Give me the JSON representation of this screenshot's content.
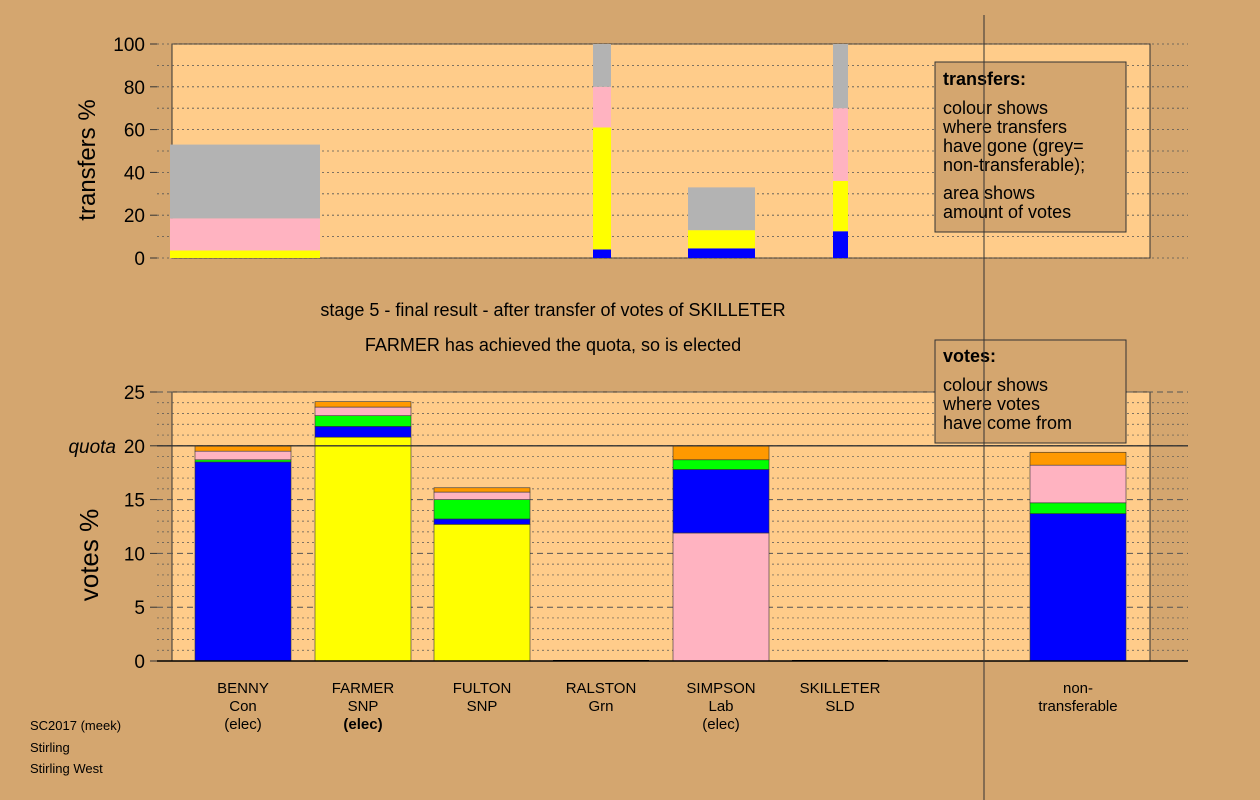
{
  "stage_title": "stage 5 - final result - after transfer of votes of SKILLETER",
  "stage_subtitle": "FARMER has achieved the quota, so is elected",
  "footer": [
    "SC2017 (meek)",
    "Stirling",
    "Stirling West"
  ],
  "colors": {
    "background": "#d4a66f",
    "plot_bg": "#ffcc8a",
    "Con": "#0000ff",
    "SNP": "#ffff00",
    "Grn": "#00ff00",
    "Lab": "#ffb3c1",
    "SLD": "#ff9900",
    "nontransferable": "#b3b3b3"
  },
  "chart_data": [
    {
      "type": "bar",
      "stacked": true,
      "ylabel": "transfers %",
      "ylim": [
        0,
        100
      ],
      "yticks": [
        0,
        20,
        40,
        60,
        80,
        100
      ],
      "grid": true,
      "legend": {
        "title": "transfers:",
        "lines1": [
          "colour shows",
          "where transfers",
          "have gone (grey=",
          "non-transferable);"
        ],
        "lines2": [
          "area shows",
          "amount of votes"
        ]
      },
      "bars": [
        {
          "from": "SIMPSON",
          "segments": [
            {
              "to": "FARMER",
              "color": "SNP",
              "value": 3.5
            },
            {
              "to": "SIMPSON",
              "color": "Lab",
              "value": 15
            },
            {
              "to": "non-transferable",
              "color": "nontransferable",
              "value": 34.5
            }
          ]
        },
        {
          "from": "RALSTON",
          "segments": [
            {
              "to": "BENNY",
              "color": "Con",
              "value": 4
            },
            {
              "to": "FARMER",
              "color": "SNP",
              "value": 57
            },
            {
              "to": "SIMPSON",
              "color": "Lab",
              "value": 19
            },
            {
              "to": "non-transferable",
              "color": "nontransferable",
              "value": 20
            }
          ]
        },
        {
          "from": "FULTON",
          "segments": [
            {
              "to": "BENNY",
              "color": "Con",
              "value": 4.5
            },
            {
              "to": "FARMER",
              "color": "SNP",
              "value": 8.5
            },
            {
              "to": "non-transferable",
              "color": "nontransferable",
              "value": 20
            }
          ]
        },
        {
          "from": "SKILLETER",
          "segments": [
            {
              "to": "BENNY",
              "color": "Con",
              "value": 12.5
            },
            {
              "to": "FARMER",
              "color": "SNP",
              "value": 23.5
            },
            {
              "to": "SIMPSON",
              "color": "Lab",
              "value": 34
            },
            {
              "to": "non-transferable",
              "color": "nontransferable",
              "value": 30
            }
          ]
        }
      ]
    },
    {
      "type": "bar",
      "stacked": true,
      "ylabel": "votes %",
      "ylim": [
        0,
        25
      ],
      "yticks": [
        0,
        5,
        10,
        15,
        20,
        25
      ],
      "quota": 20,
      "quota_label": "quota",
      "grid": true,
      "legend": {
        "title": "votes:",
        "lines": [
          "colour shows",
          "where votes",
          "have come from"
        ]
      },
      "candidates": [
        {
          "name": "BENNY",
          "party": "Con",
          "status": "(elec)",
          "bold_status": false,
          "segments": [
            {
              "color": "Con",
              "value": 18.5
            },
            {
              "color": "Grn",
              "value": 0.2
            },
            {
              "color": "Lab",
              "value": 0.8
            },
            {
              "color": "SLD",
              "value": 0.5
            }
          ]
        },
        {
          "name": "FARMER",
          "party": "SNP",
          "status": "(elec)",
          "bold_status": true,
          "segments": [
            {
              "color": "SNP",
              "value": 20.8
            },
            {
              "color": "Con",
              "value": 1
            },
            {
              "color": "Grn",
              "value": 1
            },
            {
              "color": "Lab",
              "value": 0.8
            },
            {
              "color": "SLD",
              "value": 0.5
            }
          ]
        },
        {
          "name": "FULTON",
          "party": "SNP",
          "status": "",
          "bold_status": false,
          "segments": [
            {
              "color": "SNP",
              "value": 12.7
            },
            {
              "color": "Con",
              "value": 0.5
            },
            {
              "color": "Grn",
              "value": 1.8
            },
            {
              "color": "Lab",
              "value": 0.7
            },
            {
              "color": "SLD",
              "value": 0.4
            }
          ]
        },
        {
          "name": "RALSTON",
          "party": "Grn",
          "status": "",
          "bold_status": false,
          "segments": []
        },
        {
          "name": "SIMPSON",
          "party": "Lab",
          "status": "(elec)",
          "bold_status": false,
          "segments": [
            {
              "color": "Lab",
              "value": 11.9
            },
            {
              "color": "Con",
              "value": 5.9
            },
            {
              "color": "Grn",
              "value": 0.9
            },
            {
              "color": "SLD",
              "value": 1.3
            }
          ]
        },
        {
          "name": "SKILLETER",
          "party": "SLD",
          "status": "",
          "bold_status": false,
          "segments": []
        },
        {
          "name": "non-",
          "party": "transferable",
          "status": "",
          "bold_status": false,
          "segments": [
            {
              "color": "Con",
              "value": 13.7
            },
            {
              "color": "Grn",
              "value": 1
            },
            {
              "color": "Lab",
              "value": 3.5
            },
            {
              "color": "SLD",
              "value": 1.2
            }
          ]
        }
      ]
    }
  ]
}
